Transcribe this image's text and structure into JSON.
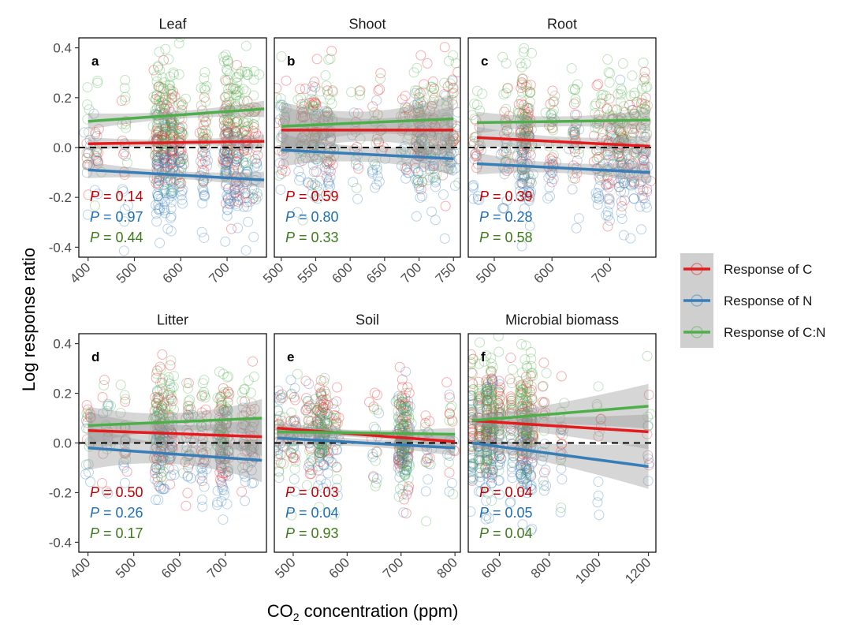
{
  "chart_data": {
    "type": "scatter",
    "ylabel": "Log response ratio",
    "xlabel": {
      "main": "CO",
      "sub": "2",
      "rest": " concentration (ppm)"
    },
    "legend": {
      "placement": "right",
      "entries": [
        {
          "name": "Response of C",
          "color": "#e41a1c"
        },
        {
          "name": "Response of N",
          "color": "#377eb8"
        },
        {
          "name": "Response of C:N",
          "color": "#4daf4a"
        }
      ]
    },
    "ylim": [
      -0.44,
      0.44
    ],
    "yticks": [
      -0.4,
      -0.2,
      0.0,
      0.2,
      0.4
    ],
    "ytick_labels": [
      "-0.4",
      "-0.2",
      "0.0",
      "0.2",
      "0.4"
    ],
    "reference_line": {
      "y": 0,
      "style": "dashed"
    },
    "pvalue_colors": [
      "#c00000",
      "#1f6fb4",
      "#3d7a1c"
    ],
    "panels": [
      {
        "title": "Leaf",
        "letter": "a",
        "xlim": [
          380,
          785
        ],
        "xticks": [
          400,
          500,
          600,
          700
        ],
        "xtick_labels": [
          "400",
          "500",
          "600",
          "700"
        ],
        "pvalues": [
          {
            "prefix": "P",
            "text": " = 0.14"
          },
          {
            "prefix": "P",
            "text": " = 0.97"
          },
          {
            "prefix": "P",
            "text": " = 0.44"
          }
        ],
        "x_clusters": [
          [
            400,
            0.5
          ],
          [
            420,
            0.5
          ],
          [
            480,
            0.6
          ],
          [
            550,
            2.5
          ],
          [
            565,
            2
          ],
          [
            580,
            2.5
          ],
          [
            600,
            1.5
          ],
          [
            650,
            1.5
          ],
          [
            700,
            3
          ],
          [
            720,
            2
          ],
          [
            740,
            1.5
          ],
          [
            760,
            1
          ]
        ],
        "series": [
          {
            "name": "Response of C",
            "fit": [
              [
                400,
                0.015
              ],
              [
                780,
                0.025
              ]
            ],
            "band": 0.012,
            "spread": 0.1
          },
          {
            "name": "Response of N",
            "fit": [
              [
                400,
                -0.09
              ],
              [
                780,
                -0.13
              ]
            ],
            "band": 0.015,
            "spread": 0.12
          },
          {
            "name": "Response of C:N",
            "fit": [
              [
                400,
                0.105
              ],
              [
                780,
                0.155
              ]
            ],
            "band": 0.015,
            "spread": 0.13
          }
        ]
      },
      {
        "title": "Shoot",
        "letter": "b",
        "xlim": [
          490,
          760
        ],
        "xticks": [
          500,
          550,
          600,
          650,
          700,
          750
        ],
        "xtick_labels": [
          "500",
          "550",
          "600",
          "650",
          "700",
          "750"
        ],
        "pvalues": [
          {
            "prefix": "P",
            "text": " = 0.59"
          },
          {
            "prefix": "P",
            "text": " = 0.80"
          },
          {
            "prefix": "P",
            "text": " = 0.33"
          }
        ],
        "x_clusters": [
          [
            500,
            0.8
          ],
          [
            530,
            1
          ],
          [
            550,
            2
          ],
          [
            570,
            1.5
          ],
          [
            610,
            0.5
          ],
          [
            640,
            0.8
          ],
          [
            680,
            0.8
          ],
          [
            700,
            2.5
          ],
          [
            720,
            1.5
          ],
          [
            740,
            1
          ],
          [
            750,
            1
          ]
        ],
        "series": [
          {
            "name": "Response of C",
            "fit": [
              [
                500,
                0.07
              ],
              [
                750,
                0.07
              ]
            ],
            "band": 0.045,
            "spread": 0.11
          },
          {
            "name": "Response of N",
            "fit": [
              [
                500,
                -0.01
              ],
              [
                750,
                -0.045
              ]
            ],
            "band": 0.03,
            "spread": 0.11
          },
          {
            "name": "Response of C:N",
            "fit": [
              [
                500,
                0.085
              ],
              [
                750,
                0.115
              ]
            ],
            "band": 0.045,
            "spread": 0.12
          }
        ]
      },
      {
        "title": "Root",
        "letter": "c",
        "xlim": [
          455,
          780
        ],
        "xticks": [
          500,
          600,
          700
        ],
        "xtick_labels": [
          "500",
          "600",
          "700"
        ],
        "pvalues": [
          {
            "prefix": "P",
            "text": " = 0.39"
          },
          {
            "prefix": "P",
            "text": " = 0.28"
          },
          {
            "prefix": "P",
            "text": " = 0.58"
          }
        ],
        "x_clusters": [
          [
            470,
            0.8
          ],
          [
            520,
            1
          ],
          [
            550,
            2.5
          ],
          [
            560,
            1.5
          ],
          [
            600,
            1
          ],
          [
            640,
            1
          ],
          [
            680,
            1
          ],
          [
            700,
            1.5
          ],
          [
            720,
            2
          ],
          [
            740,
            1.2
          ],
          [
            760,
            1.5
          ]
        ],
        "series": [
          {
            "name": "Response of C",
            "fit": [
              [
                470,
                0.04
              ],
              [
                770,
                0.005
              ]
            ],
            "band": 0.02,
            "spread": 0.11
          },
          {
            "name": "Response of N",
            "fit": [
              [
                470,
                -0.065
              ],
              [
                770,
                -0.1
              ]
            ],
            "band": 0.02,
            "spread": 0.11
          },
          {
            "name": "Response of C:N",
            "fit": [
              [
                470,
                0.1
              ],
              [
                770,
                0.11
              ]
            ],
            "band": 0.02,
            "spread": 0.11
          }
        ]
      },
      {
        "title": "Litter",
        "letter": "d",
        "xlim": [
          380,
          790
        ],
        "xticks": [
          400,
          500,
          600,
          700
        ],
        "xtick_labels": [
          "400",
          "500",
          "600",
          "700"
        ],
        "pvalues": [
          {
            "prefix": "P",
            "text": " = 0.50"
          },
          {
            "prefix": "P",
            "text": " = 0.26"
          },
          {
            "prefix": "P",
            "text": " = 0.17"
          }
        ],
        "x_clusters": [
          [
            400,
            0.5
          ],
          [
            440,
            0.5
          ],
          [
            480,
            0.6
          ],
          [
            550,
            1.5
          ],
          [
            560,
            2
          ],
          [
            580,
            1.5
          ],
          [
            620,
            1
          ],
          [
            650,
            1
          ],
          [
            690,
            2
          ],
          [
            700,
            1.5
          ],
          [
            740,
            0.8
          ],
          [
            760,
            0.8
          ]
        ],
        "series": [
          {
            "name": "Response of C",
            "fit": [
              [
                400,
                0.05
              ],
              [
                780,
                0.025
              ]
            ],
            "band": 0.035,
            "spread": 0.11
          },
          {
            "name": "Response of N",
            "fit": [
              [
                400,
                -0.02
              ],
              [
                780,
                -0.07
              ]
            ],
            "band": 0.04,
            "spread": 0.11
          },
          {
            "name": "Response of C:N",
            "fit": [
              [
                400,
                0.07
              ],
              [
                780,
                0.1
              ]
            ],
            "band": 0.035,
            "spread": 0.11
          }
        ]
      },
      {
        "title": "Soil",
        "letter": "e",
        "xlim": [
          465,
          810
        ],
        "xticks": [
          500,
          600,
          700,
          800
        ],
        "xtick_labels": [
          "500",
          "600",
          "700",
          "800"
        ],
        "pvalues": [
          {
            "prefix": "P",
            "text": " = 0.03"
          },
          {
            "prefix": "P",
            "text": " = 0.04"
          },
          {
            "prefix": "P",
            "text": " = 0.93"
          }
        ],
        "x_clusters": [
          [
            475,
            1
          ],
          [
            500,
            1
          ],
          [
            530,
            1
          ],
          [
            550,
            2
          ],
          [
            560,
            1.5
          ],
          [
            580,
            0.8
          ],
          [
            650,
            0.5
          ],
          [
            700,
            3
          ],
          [
            710,
            2
          ],
          [
            750,
            0.6
          ],
          [
            790,
            0.6
          ]
        ],
        "series": [
          {
            "name": "Response of C",
            "fit": [
              [
                470,
                0.06
              ],
              [
                800,
                0.005
              ]
            ],
            "band": 0.012,
            "spread": 0.1
          },
          {
            "name": "Response of N",
            "fit": [
              [
                470,
                0.02
              ],
              [
                800,
                -0.02
              ]
            ],
            "band": 0.015,
            "spread": 0.1
          },
          {
            "name": "Response of C:N",
            "fit": [
              [
                470,
                0.045
              ],
              [
                800,
                0.035
              ]
            ],
            "band": 0.012,
            "spread": 0.1
          }
        ]
      },
      {
        "title": "Microbial biomass",
        "letter": "f",
        "xlim": [
          475,
          1230
        ],
        "xticks": [
          600,
          800,
          1000,
          1200
        ],
        "xtick_labels": [
          "600",
          "800",
          "1000",
          "1200"
        ],
        "pvalues": [
          {
            "prefix": "P",
            "text": " = 0.04"
          },
          {
            "prefix": "P",
            "text": " = 0.05"
          },
          {
            "prefix": "P",
            "text": " = 0.04"
          }
        ],
        "x_clusters": [
          [
            490,
            1.5
          ],
          [
            520,
            1.5
          ],
          [
            550,
            2.5
          ],
          [
            570,
            2
          ],
          [
            600,
            1.5
          ],
          [
            650,
            1
          ],
          [
            690,
            2
          ],
          [
            710,
            2
          ],
          [
            730,
            1.5
          ],
          [
            780,
            0.6
          ],
          [
            850,
            0.5
          ],
          [
            1000,
            0.3
          ],
          [
            1200,
            0.3
          ]
        ],
        "series": [
          {
            "name": "Response of C",
            "fit": [
              [
                490,
                0.09
              ],
              [
                1200,
                0.045
              ]
            ],
            "band_lo": 0.02,
            "band_hi": 0.07,
            "spread": 0.11
          },
          {
            "name": "Response of N",
            "fit": [
              [
                490,
                0.0
              ],
              [
                1200,
                -0.095
              ]
            ],
            "band_lo": 0.02,
            "band_hi": 0.09,
            "spread": 0.12
          },
          {
            "name": "Response of C:N",
            "fit": [
              [
                490,
                0.09
              ],
              [
                1200,
                0.148
              ]
            ],
            "band_lo": 0.02,
            "band_hi": 0.09,
            "spread": 0.12
          }
        ]
      }
    ]
  }
}
